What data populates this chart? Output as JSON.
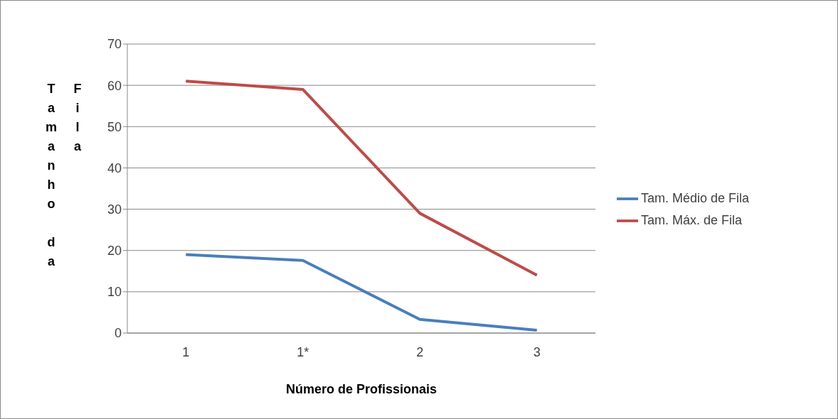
{
  "chart_data": {
    "type": "line",
    "xlabel": "Número de Profissionais",
    "ylabel": "Tamanho da Fila",
    "categories": [
      "1",
      "1*",
      "2",
      "3"
    ],
    "series": [
      {
        "name": "Tam. Médio de Fila",
        "color": "#4a7ebb",
        "values": [
          19,
          17.6,
          3.3,
          0.7
        ]
      },
      {
        "name": "Tam. Máx. de Fila",
        "color": "#be4b48",
        "values": [
          61,
          59,
          29,
          14
        ]
      }
    ],
    "ylim": [
      0,
      70
    ],
    "yticks": [
      0,
      10,
      20,
      30,
      40,
      50,
      60,
      70
    ],
    "grid": "y",
    "legend": "right",
    "marker": "none",
    "line_style": "solid"
  }
}
